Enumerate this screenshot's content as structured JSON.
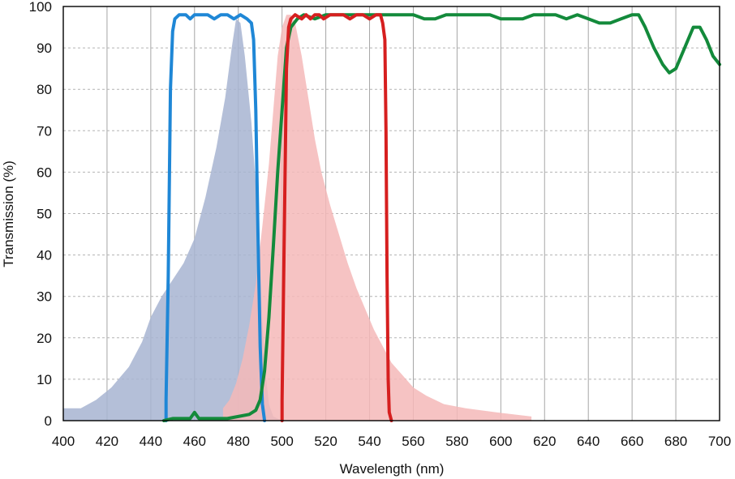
{
  "chart_data": {
    "type": "line",
    "title": "",
    "xlabel": "Wavelength (nm)",
    "ylabel": "Transmission (%)",
    "xlim": [
      400,
      700
    ],
    "ylim": [
      0,
      100
    ],
    "x_ticks": [
      400,
      420,
      440,
      460,
      480,
      500,
      520,
      540,
      560,
      580,
      600,
      620,
      640,
      660,
      680,
      700
    ],
    "y_ticks": [
      0,
      10,
      20,
      30,
      40,
      50,
      60,
      70,
      80,
      90,
      100
    ],
    "grid": {
      "vertical": "solid",
      "horizontal": "dashed"
    },
    "legend": "none",
    "series": [
      {
        "kind": "area",
        "color": "#a7b4d1",
        "points": [
          [
            400,
            3
          ],
          [
            408,
            3
          ],
          [
            415,
            5
          ],
          [
            422,
            8
          ],
          [
            430,
            13
          ],
          [
            436,
            19
          ],
          [
            440,
            25
          ],
          [
            445,
            30
          ],
          [
            450,
            34
          ],
          [
            455,
            38
          ],
          [
            460,
            44
          ],
          [
            465,
            54
          ],
          [
            470,
            66
          ],
          [
            474,
            78
          ],
          [
            477,
            90
          ],
          [
            479,
            97
          ],
          [
            481,
            96
          ],
          [
            483,
            88
          ],
          [
            486,
            72
          ],
          [
            488,
            57
          ],
          [
            490,
            35
          ],
          [
            492,
            14
          ],
          [
            494,
            4
          ],
          [
            496,
            1
          ],
          [
            500,
            0
          ]
        ]
      },
      {
        "kind": "area",
        "color": "#f5b9b9",
        "points": [
          [
            473,
            3
          ],
          [
            476,
            5
          ],
          [
            479,
            9
          ],
          [
            482,
            15
          ],
          [
            485,
            23
          ],
          [
            488,
            33
          ],
          [
            491,
            47
          ],
          [
            494,
            62
          ],
          [
            496,
            75
          ],
          [
            498,
            88
          ],
          [
            500,
            95
          ],
          [
            502,
            98
          ],
          [
            504,
            98
          ],
          [
            506,
            96
          ],
          [
            509,
            88
          ],
          [
            512,
            78
          ],
          [
            515,
            68
          ],
          [
            518,
            60
          ],
          [
            522,
            52
          ],
          [
            526,
            45
          ],
          [
            530,
            38
          ],
          [
            534,
            32
          ],
          [
            538,
            27
          ],
          [
            542,
            22
          ],
          [
            546,
            18
          ],
          [
            550,
            14
          ],
          [
            555,
            11
          ],
          [
            560,
            8
          ],
          [
            566,
            6
          ],
          [
            574,
            4
          ],
          [
            584,
            3
          ],
          [
            598,
            2
          ],
          [
            614,
            1
          ],
          [
            614,
            0
          ]
        ]
      },
      {
        "kind": "line",
        "color": "#1f87d6",
        "points": [
          [
            447,
            0
          ],
          [
            447,
            5
          ],
          [
            448,
            35
          ],
          [
            449,
            80
          ],
          [
            450,
            94
          ],
          [
            451,
            97
          ],
          [
            453,
            98
          ],
          [
            456,
            98
          ],
          [
            458,
            97
          ],
          [
            460,
            98
          ],
          [
            463,
            98
          ],
          [
            466,
            98
          ],
          [
            469,
            97
          ],
          [
            472,
            98
          ],
          [
            475,
            98
          ],
          [
            478,
            97
          ],
          [
            481,
            98
          ],
          [
            484,
            97
          ],
          [
            486,
            96
          ],
          [
            487,
            92
          ],
          [
            488,
            75
          ],
          [
            489,
            45
          ],
          [
            490,
            18
          ],
          [
            491,
            4
          ],
          [
            492,
            0
          ]
        ]
      },
      {
        "kind": "line",
        "color": "#138a3b",
        "points": [
          [
            446,
            0
          ],
          [
            450,
            0.5
          ],
          [
            455,
            0.5
          ],
          [
            458,
            0.5
          ],
          [
            460,
            2
          ],
          [
            462,
            0.5
          ],
          [
            465,
            0.5
          ],
          [
            470,
            0.5
          ],
          [
            475,
            0.5
          ],
          [
            480,
            1
          ],
          [
            485,
            1.5
          ],
          [
            488,
            2.5
          ],
          [
            490,
            5
          ],
          [
            492,
            12
          ],
          [
            494,
            25
          ],
          [
            496,
            42
          ],
          [
            498,
            60
          ],
          [
            500,
            75
          ],
          [
            502,
            90
          ],
          [
            504,
            95
          ],
          [
            507,
            97
          ],
          [
            510,
            98
          ],
          [
            515,
            97
          ],
          [
            520,
            98
          ],
          [
            525,
            98
          ],
          [
            530,
            98
          ],
          [
            540,
            98
          ],
          [
            550,
            98
          ],
          [
            555,
            98
          ],
          [
            560,
            98
          ],
          [
            565,
            97
          ],
          [
            570,
            97
          ],
          [
            575,
            98
          ],
          [
            580,
            98
          ],
          [
            585,
            98
          ],
          [
            590,
            98
          ],
          [
            595,
            98
          ],
          [
            600,
            97
          ],
          [
            610,
            97
          ],
          [
            615,
            98
          ],
          [
            625,
            98
          ],
          [
            630,
            97
          ],
          [
            635,
            98
          ],
          [
            640,
            97
          ],
          [
            645,
            96
          ],
          [
            650,
            96
          ],
          [
            655,
            97
          ],
          [
            660,
            98
          ],
          [
            663,
            98
          ],
          [
            666,
            95
          ],
          [
            670,
            90
          ],
          [
            674,
            86
          ],
          [
            677,
            84
          ],
          [
            680,
            85
          ],
          [
            684,
            90
          ],
          [
            688,
            95
          ],
          [
            691,
            95
          ],
          [
            694,
            92
          ],
          [
            697,
            88
          ],
          [
            700,
            86
          ]
        ]
      },
      {
        "kind": "line",
        "color": "#d61f1f",
        "points": [
          [
            500,
            0
          ],
          [
            500,
            5
          ],
          [
            501,
            45
          ],
          [
            502,
            85
          ],
          [
            503,
            95
          ],
          [
            504,
            97
          ],
          [
            506,
            98
          ],
          [
            509,
            97
          ],
          [
            511,
            98
          ],
          [
            513,
            97
          ],
          [
            515,
            98
          ],
          [
            517,
            98
          ],
          [
            519,
            97
          ],
          [
            522,
            98
          ],
          [
            525,
            98
          ],
          [
            528,
            98
          ],
          [
            531,
            97
          ],
          [
            534,
            98
          ],
          [
            537,
            98
          ],
          [
            540,
            97
          ],
          [
            543,
            98
          ],
          [
            545,
            98
          ],
          [
            546,
            96
          ],
          [
            547,
            92
          ],
          [
            547.5,
            70
          ],
          [
            548,
            35
          ],
          [
            548.5,
            10
          ],
          [
            549,
            2
          ],
          [
            550,
            0
          ]
        ]
      }
    ]
  }
}
